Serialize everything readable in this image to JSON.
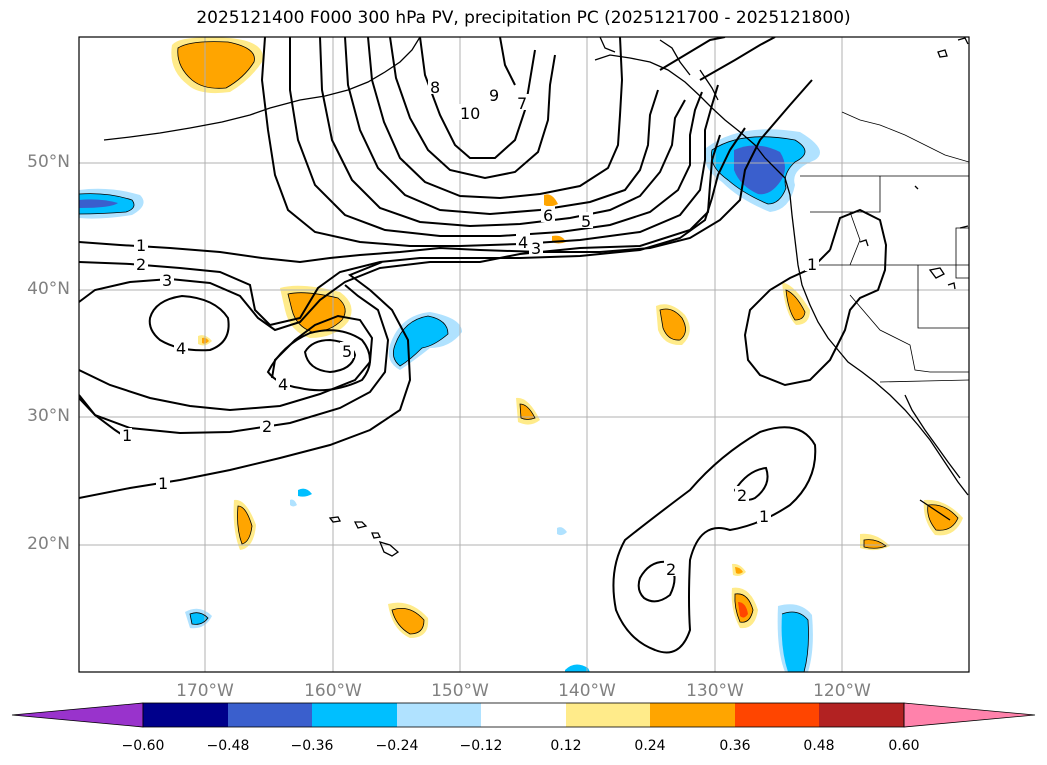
{
  "title": "2025121400 F000 300 hPa PV, precipitation PC (2025121700 - 2025121800)",
  "lat_labels": [
    "50°N",
    "40°N",
    "30°N",
    "20°N"
  ],
  "lon_labels": [
    "170°W",
    "160°W",
    "150°W",
    "140°W",
    "130°W",
    "120°W"
  ],
  "colorbar": {
    "ticks": [
      "−0.60",
      "−0.48",
      "−0.36",
      "−0.24",
      "−0.12",
      "0.12",
      "0.24",
      "0.36",
      "0.48",
      "0.60"
    ],
    "colors": [
      "#9933cc",
      "#00008b",
      "#3a5fcd",
      "#00bfff",
      "#b0e2ff",
      "#ffffff",
      "#ffeb8a",
      "#ffa500",
      "#ff4500",
      "#b22222",
      "#ff82ab"
    ]
  },
  "pv_contour_labels": {
    "c1": "1",
    "c2": "2",
    "c3": "3",
    "c4": "4",
    "c5": "5",
    "c6": "6",
    "c7": "7",
    "c8": "8",
    "c9": "9",
    "c10": "10"
  }
}
